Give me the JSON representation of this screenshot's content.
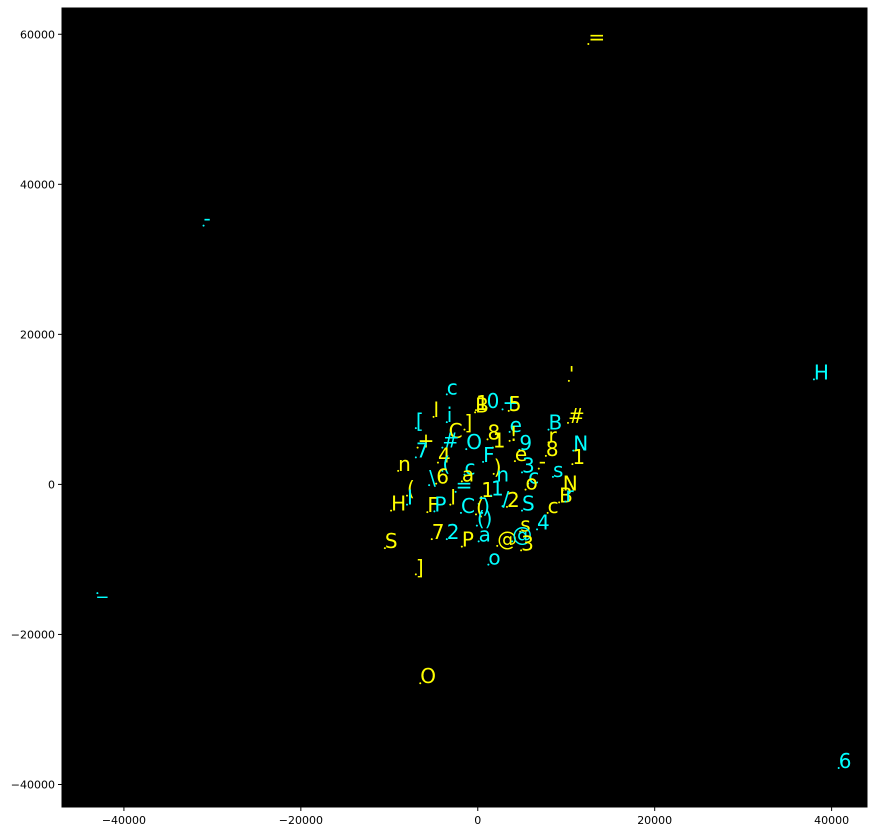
{
  "chart_data": {
    "type": "scatter",
    "title": "",
    "xlabel": "",
    "ylabel": "",
    "xlim": [
      -47000,
      44000
    ],
    "ylim": [
      -43000,
      63500
    ],
    "xticks": [
      -40000,
      -20000,
      0,
      20000,
      40000
    ],
    "yticks": [
      -40000,
      -20000,
      0,
      20000,
      40000,
      60000
    ],
    "xtick_labels": [
      "−40000",
      "−20000",
      "0",
      "20000",
      "40000"
    ],
    "ytick_labels": [
      "−40000",
      "−20000",
      "0",
      "20000",
      "40000",
      "60000"
    ],
    "background": "#000000",
    "grid": false,
    "colors": {
      "yellow": "#ffff00",
      "cyan": "#00ffff",
      "axis": "#000000",
      "frame_bg": "#ffffff"
    },
    "points": [
      {
        "x": 12500,
        "y": 58700,
        "label": "=",
        "color": "yellow"
      },
      {
        "x": -31000,
        "y": 34500,
        "label": "-",
        "color": "cyan"
      },
      {
        "x": 38000,
        "y": 14000,
        "label": "H",
        "color": "cyan"
      },
      {
        "x": 10300,
        "y": 13800,
        "label": "'",
        "color": "yellow"
      },
      {
        "x": -43000,
        "y": -14500,
        "label": "_",
        "color": "cyan"
      },
      {
        "x": -6500,
        "y": -26500,
        "label": "O",
        "color": "yellow"
      },
      {
        "x": 40800,
        "y": -37800,
        "label": "6",
        "color": "cyan"
      },
      {
        "x": -3500,
        "y": 12000,
        "label": "c",
        "color": "cyan"
      },
      {
        "x": -5000,
        "y": 9000,
        "label": "l",
        "color": "yellow"
      },
      {
        "x": -3500,
        "y": 8300,
        "label": "i",
        "color": "cyan"
      },
      {
        "x": -7000,
        "y": 7500,
        "label": "[",
        "color": "cyan"
      },
      {
        "x": -1500,
        "y": 7300,
        "label": "]",
        "color": "yellow"
      },
      {
        "x": -200,
        "y": 9900,
        "label": "1",
        "color": "yellow"
      },
      {
        "x": 1000,
        "y": 10200,
        "label": "0",
        "color": "cyan"
      },
      {
        "x": -300,
        "y": 9600,
        "label": "B",
        "color": "yellow"
      },
      {
        "x": 2800,
        "y": 10000,
        "label": "+",
        "color": "cyan"
      },
      {
        "x": 3500,
        "y": 9800,
        "label": "5",
        "color": "yellow"
      },
      {
        "x": 3600,
        "y": 7000,
        "label": "e",
        "color": "cyan"
      },
      {
        "x": 8000,
        "y": 7300,
        "label": "B",
        "color": "cyan"
      },
      {
        "x": 10200,
        "y": 8200,
        "label": "#",
        "color": "yellow"
      },
      {
        "x": -3300,
        "y": 6200,
        "label": "C",
        "color": "yellow"
      },
      {
        "x": 1100,
        "y": 6000,
        "label": "8",
        "color": "yellow"
      },
      {
        "x": 3600,
        "y": 5800,
        "label": "!",
        "color": "yellow"
      },
      {
        "x": -6800,
        "y": 4900,
        "label": "+",
        "color": "yellow"
      },
      {
        "x": -4000,
        "y": 4900,
        "label": "#",
        "color": "cyan"
      },
      {
        "x": -1300,
        "y": 4700,
        "label": "O",
        "color": "cyan"
      },
      {
        "x": 1700,
        "y": 4900,
        "label": "1",
        "color": "yellow"
      },
      {
        "x": 4700,
        "y": 4600,
        "label": "9",
        "color": "cyan"
      },
      {
        "x": 8000,
        "y": 5600,
        "label": "r",
        "color": "yellow"
      },
      {
        "x": 10800,
        "y": 4500,
        "label": "N",
        "color": "cyan"
      },
      {
        "x": -7000,
        "y": 3600,
        "label": "7",
        "color": "cyan"
      },
      {
        "x": -4500,
        "y": 2900,
        "label": "4",
        "color": "yellow"
      },
      {
        "x": 600,
        "y": 3000,
        "label": "F",
        "color": "cyan"
      },
      {
        "x": 4200,
        "y": 3100,
        "label": "e",
        "color": "yellow"
      },
      {
        "x": 7700,
        "y": 3800,
        "label": "8",
        "color": "yellow"
      },
      {
        "x": -9000,
        "y": 1800,
        "label": "n",
        "color": "yellow"
      },
      {
        "x": -4000,
        "y": 1800,
        "label": "(",
        "color": "cyan"
      },
      {
        "x": -1500,
        "y": 1300,
        "label": "c",
        "color": "cyan"
      },
      {
        "x": 1800,
        "y": 1400,
        "label": ")",
        "color": "yellow"
      },
      {
        "x": 5000,
        "y": 1600,
        "label": "3",
        "color": "cyan"
      },
      {
        "x": 6900,
        "y": 2100,
        "label": "-",
        "color": "yellow"
      },
      {
        "x": 10700,
        "y": 2700,
        "label": "1",
        "color": "yellow"
      },
      {
        "x": -5500,
        "y": -100,
        "label": "\\",
        "color": "cyan"
      },
      {
        "x": -4700,
        "y": 100,
        "label": "6",
        "color": "yellow"
      },
      {
        "x": -1800,
        "y": 400,
        "label": "a",
        "color": "yellow"
      },
      {
        "x": 2100,
        "y": 400,
        "label": "n",
        "color": "cyan"
      },
      {
        "x": 5700,
        "y": 100,
        "label": "c",
        "color": "cyan"
      },
      {
        "x": 8500,
        "y": 1000,
        "label": "s",
        "color": "cyan"
      },
      {
        "x": -8000,
        "y": -1500,
        "label": "(",
        "color": "yellow"
      },
      {
        "x": -2500,
        "y": -1000,
        "label": "=",
        "color": "cyan"
      },
      {
        "x": 400,
        "y": -1700,
        "label": "1",
        "color": "yellow"
      },
      {
        "x": 1500,
        "y": -1500,
        "label": "1",
        "color": "cyan"
      },
      {
        "x": 5400,
        "y": -700,
        "label": "o",
        "color": "yellow"
      },
      {
        "x": 9600,
        "y": -800,
        "label": "N",
        "color": "yellow"
      },
      {
        "x": -8000,
        "y": -2700,
        "label": "I",
        "color": "cyan"
      },
      {
        "x": -3100,
        "y": -2700,
        "label": "l",
        "color": "yellow"
      },
      {
        "x": 100,
        "y": -2600,
        "label": "-",
        "color": "cyan"
      },
      {
        "x": 2800,
        "y": -2900,
        "label": "/",
        "color": "cyan"
      },
      {
        "x": 3300,
        "y": -3000,
        "label": "2",
        "color": "yellow"
      },
      {
        "x": 9200,
        "y": -2400,
        "label": "B",
        "color": "yellow"
      },
      {
        "x": 9900,
        "y": -2300,
        "label": "r",
        "color": "cyan"
      },
      {
        "x": -9800,
        "y": -3500,
        "label": "H",
        "color": "yellow"
      },
      {
        "x": -5700,
        "y": -3700,
        "label": "F",
        "color": "yellow"
      },
      {
        "x": -4900,
        "y": -3600,
        "label": "P",
        "color": "cyan"
      },
      {
        "x": -1900,
        "y": -3800,
        "label": "C",
        "color": "cyan"
      },
      {
        "x": -200,
        "y": -4000,
        "label": "(",
        "color": "yellow"
      },
      {
        "x": 500,
        "y": -3800,
        "label": ")",
        "color": "cyan"
      },
      {
        "x": 5000,
        "y": -3500,
        "label": "S",
        "color": "cyan"
      },
      {
        "x": 7900,
        "y": -3800,
        "label": "c",
        "color": "yellow"
      },
      {
        "x": -100,
        "y": -5500,
        "label": "()",
        "color": "cyan"
      },
      {
        "x": 4800,
        "y": -6300,
        "label": "s",
        "color": "yellow"
      },
      {
        "x": 6700,
        "y": -6000,
        "label": "4",
        "color": "cyan"
      },
      {
        "x": -5200,
        "y": -7300,
        "label": "7",
        "color": "yellow"
      },
      {
        "x": -3500,
        "y": -7300,
        "label": "2",
        "color": "cyan"
      },
      {
        "x": -1800,
        "y": -8300,
        "label": "P",
        "color": "yellow"
      },
      {
        "x": 100,
        "y": -7600,
        "label": "a",
        "color": "cyan"
      },
      {
        "x": 2200,
        "y": -8200,
        "label": "@",
        "color": "yellow"
      },
      {
        "x": 3900,
        "y": -7600,
        "label": "@",
        "color": "cyan"
      },
      {
        "x": 4900,
        "y": -8800,
        "label": "3",
        "color": "yellow"
      },
      {
        "x": -10500,
        "y": -8500,
        "label": "S",
        "color": "yellow"
      },
      {
        "x": 1200,
        "y": -10700,
        "label": "o",
        "color": "cyan"
      },
      {
        "x": -7000,
        "y": -12000,
        "label": "]",
        "color": "yellow"
      }
    ]
  }
}
